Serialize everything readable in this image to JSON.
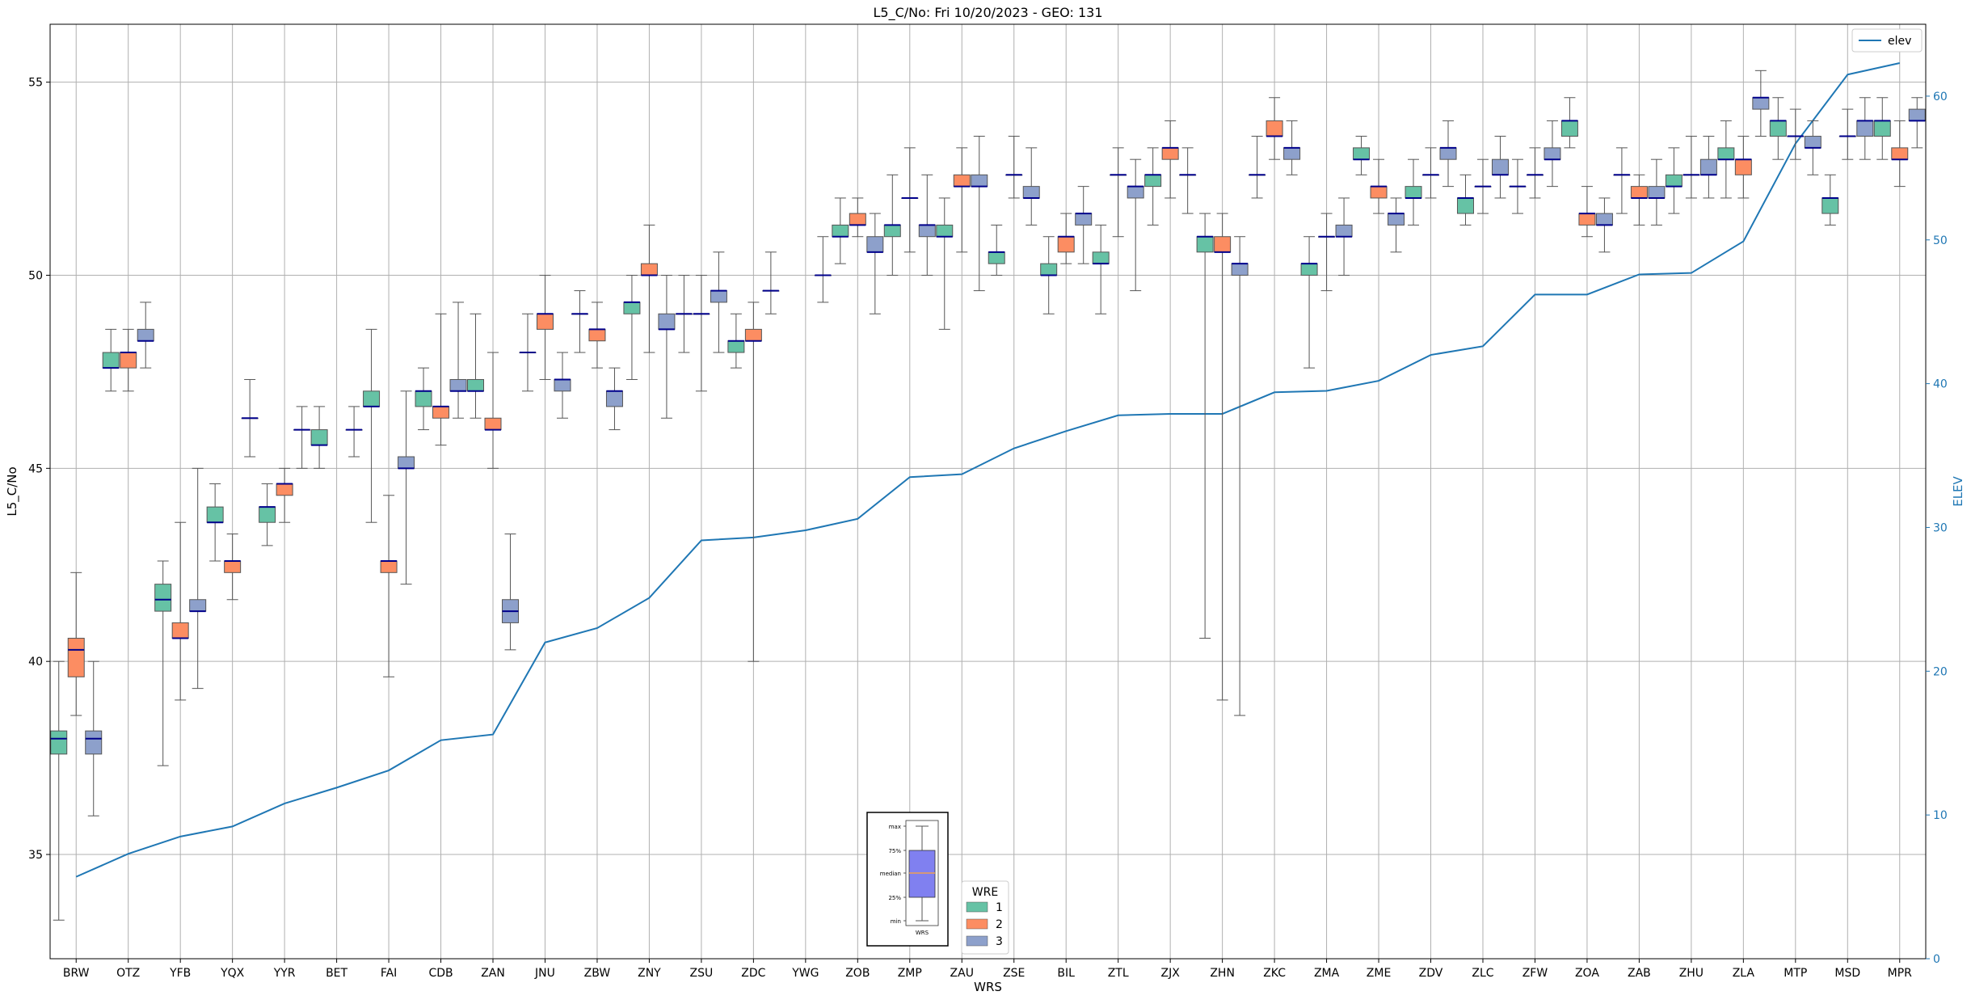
{
  "chart_data": {
    "type": "box",
    "title": "L5_C/No: Fri 10/20/2023 - GEO: 131",
    "xlabel": "WRS",
    "ylabel": "L5_C/No",
    "y2label": "ELEV",
    "ylim": [
      32.3,
      56.5
    ],
    "y2lim": [
      0,
      65
    ],
    "yticks": [
      35,
      40,
      45,
      50,
      55
    ],
    "y2ticks": [
      0,
      10,
      20,
      30,
      40,
      50,
      60
    ],
    "grid": true,
    "categories": [
      "BRW",
      "OTZ",
      "YFB",
      "YQX",
      "YYR",
      "BET",
      "FAI",
      "CDB",
      "ZAN",
      "JNU",
      "ZBW",
      "ZNY",
      "ZSU",
      "ZDC",
      "YWG",
      "ZOB",
      "ZMP",
      "ZAU",
      "ZSE",
      "BIL",
      "ZTL",
      "ZJX",
      "ZHN",
      "ZKC",
      "ZMA",
      "ZME",
      "ZDV",
      "ZLC",
      "ZFW",
      "ZOA",
      "ZAB",
      "ZHU",
      "ZLA",
      "MTP",
      "MSD",
      "MPR"
    ],
    "hue": {
      "title": "WRE",
      "levels": [
        "1",
        "2",
        "3"
      ],
      "colors": [
        "#66c2a5",
        "#fc8d62",
        "#8da0cb"
      ]
    },
    "median_color": "#00008b",
    "boxes": [
      [
        "BRW",
        1,
        33.3,
        37.6,
        38.0,
        38.2,
        40.0
      ],
      [
        "BRW",
        2,
        38.6,
        39.6,
        40.3,
        40.6,
        42.3
      ],
      [
        "BRW",
        3,
        36.0,
        37.6,
        38.0,
        38.2,
        40.0
      ],
      [
        "OTZ",
        1,
        47.0,
        47.6,
        47.6,
        48.0,
        48.6
      ],
      [
        "OTZ",
        2,
        47.0,
        47.6,
        48.0,
        48.0,
        48.6
      ],
      [
        "OTZ",
        3,
        47.6,
        48.3,
        48.3,
        48.6,
        49.3
      ],
      [
        "YFB",
        1,
        37.3,
        41.3,
        41.6,
        42.0,
        42.6
      ],
      [
        "YFB",
        2,
        39.0,
        40.6,
        40.6,
        41.0,
        43.6
      ],
      [
        "YFB",
        3,
        39.3,
        41.3,
        41.3,
        41.6,
        45.0
      ],
      [
        "YQX",
        1,
        42.6,
        43.6,
        43.6,
        44.0,
        44.6
      ],
      [
        "YQX",
        2,
        41.6,
        42.3,
        42.6,
        42.6,
        43.3
      ],
      [
        "YQX",
        3,
        45.3,
        46.3,
        46.3,
        46.3,
        47.3
      ],
      [
        "YYR",
        1,
        43.0,
        43.6,
        44.0,
        44.0,
        44.6
      ],
      [
        "YYR",
        2,
        43.6,
        44.3,
        44.6,
        44.6,
        45.0
      ],
      [
        "YYR",
        3,
        45.0,
        46.0,
        46.0,
        46.0,
        46.6
      ],
      [
        "BET",
        1,
        45.0,
        45.6,
        45.6,
        46.0,
        46.6
      ],
      [
        "BET",
        3,
        45.3,
        46.0,
        46.0,
        46.0,
        46.6
      ],
      [
        "FAI",
        1,
        43.6,
        46.6,
        46.6,
        47.0,
        48.6
      ],
      [
        "FAI",
        2,
        39.6,
        42.3,
        42.6,
        42.6,
        44.3
      ],
      [
        "FAI",
        3,
        42.0,
        45.0,
        45.0,
        45.3,
        47.0
      ],
      [
        "CDB",
        1,
        46.0,
        46.6,
        47.0,
        47.0,
        47.6
      ],
      [
        "CDB",
        2,
        45.6,
        46.3,
        46.6,
        46.6,
        49.0
      ],
      [
        "CDB",
        3,
        46.3,
        47.0,
        47.0,
        47.3,
        49.3
      ],
      [
        "ZAN",
        1,
        46.3,
        47.0,
        47.0,
        47.3,
        49.0
      ],
      [
        "ZAN",
        2,
        45.0,
        46.0,
        46.0,
        46.3,
        48.0
      ],
      [
        "ZAN",
        3,
        40.3,
        41.0,
        41.3,
        41.6,
        43.3
      ],
      [
        "JNU",
        1,
        47.0,
        48.0,
        48.0,
        48.0,
        49.0
      ],
      [
        "JNU",
        2,
        47.3,
        48.6,
        49.0,
        49.0,
        50.0
      ],
      [
        "JNU",
        3,
        46.3,
        47.0,
        47.3,
        47.3,
        48.0
      ],
      [
        "ZBW",
        1,
        48.0,
        49.0,
        49.0,
        49.0,
        49.6
      ],
      [
        "ZBW",
        2,
        47.6,
        48.3,
        48.6,
        48.6,
        49.3
      ],
      [
        "ZBW",
        3,
        46.0,
        46.6,
        47.0,
        47.0,
        47.6
      ],
      [
        "ZNY",
        1,
        47.3,
        49.0,
        49.3,
        49.3,
        50.0
      ],
      [
        "ZNY",
        2,
        48.0,
        50.0,
        50.0,
        50.3,
        51.3
      ],
      [
        "ZNY",
        3,
        46.3,
        48.6,
        48.6,
        49.0,
        50.0
      ],
      [
        "ZSU",
        1,
        48.0,
        49.0,
        49.0,
        49.0,
        50.0
      ],
      [
        "ZSU",
        2,
        47.0,
        49.0,
        49.0,
        49.0,
        50.0
      ],
      [
        "ZSU",
        3,
        48.0,
        49.3,
        49.6,
        49.6,
        50.6
      ],
      [
        "ZDC",
        1,
        47.6,
        48.0,
        48.3,
        48.3,
        49.0
      ],
      [
        "ZDC",
        2,
        40.0,
        48.3,
        48.3,
        48.6,
        49.3
      ],
      [
        "ZDC",
        3,
        49.0,
        49.6,
        49.6,
        49.6,
        50.6
      ],
      [
        "YWG",
        3,
        49.3,
        50.0,
        50.0,
        50.0,
        51.0
      ],
      [
        "ZOB",
        1,
        50.3,
        51.0,
        51.0,
        51.3,
        52.0
      ],
      [
        "ZOB",
        2,
        51.0,
        51.3,
        51.3,
        51.6,
        52.0
      ],
      [
        "ZOB",
        3,
        49.0,
        50.6,
        50.6,
        51.0,
        51.6
      ],
      [
        "ZMP",
        1,
        50.0,
        51.0,
        51.3,
        51.3,
        52.6
      ],
      [
        "ZMP",
        2,
        50.6,
        52.0,
        52.0,
        52.0,
        53.3
      ],
      [
        "ZMP",
        3,
        50.0,
        51.0,
        51.3,
        51.3,
        52.6
      ],
      [
        "ZAU",
        1,
        48.6,
        51.0,
        51.0,
        51.3,
        52.0
      ],
      [
        "ZAU",
        2,
        50.6,
        52.3,
        52.3,
        52.6,
        53.3
      ],
      [
        "ZAU",
        3,
        49.6,
        52.3,
        52.3,
        52.6,
        53.6
      ],
      [
        "ZSE",
        1,
        50.0,
        50.3,
        50.6,
        50.6,
        51.3
      ],
      [
        "ZSE",
        2,
        52.0,
        52.6,
        52.6,
        52.6,
        53.6
      ],
      [
        "ZSE",
        3,
        51.3,
        52.0,
        52.0,
        52.3,
        53.3
      ],
      [
        "BIL",
        1,
        49.0,
        50.0,
        50.0,
        50.3,
        51.0
      ],
      [
        "BIL",
        2,
        50.3,
        50.6,
        51.0,
        51.0,
        51.6
      ],
      [
        "BIL",
        3,
        50.3,
        51.3,
        51.6,
        51.6,
        52.3
      ],
      [
        "ZTL",
        1,
        49.0,
        50.3,
        50.3,
        50.6,
        51.3
      ],
      [
        "ZTL",
        2,
        51.0,
        52.6,
        52.6,
        52.6,
        53.3
      ],
      [
        "ZTL",
        3,
        49.6,
        52.0,
        52.3,
        52.3,
        53.0
      ],
      [
        "ZJX",
        1,
        51.3,
        52.3,
        52.6,
        52.6,
        53.3
      ],
      [
        "ZJX",
        2,
        52.0,
        53.0,
        53.3,
        53.3,
        54.0
      ],
      [
        "ZJX",
        3,
        51.6,
        52.6,
        52.6,
        52.6,
        53.3
      ],
      [
        "ZHN",
        1,
        40.6,
        50.6,
        51.0,
        51.0,
        51.6
      ],
      [
        "ZHN",
        2,
        39.0,
        50.6,
        50.6,
        51.0,
        51.6
      ],
      [
        "ZHN",
        3,
        38.6,
        50.0,
        50.3,
        50.3,
        51.0
      ],
      [
        "ZKC",
        1,
        52.0,
        52.6,
        52.6,
        52.6,
        53.6
      ],
      [
        "ZKC",
        2,
        53.0,
        53.6,
        53.6,
        54.0,
        54.6
      ],
      [
        "ZKC",
        3,
        52.6,
        53.0,
        53.3,
        53.3,
        54.0
      ],
      [
        "ZMA",
        1,
        47.6,
        50.0,
        50.3,
        50.3,
        51.0
      ],
      [
        "ZMA",
        2,
        49.6,
        51.0,
        51.0,
        51.0,
        51.6
      ],
      [
        "ZMA",
        3,
        50.0,
        51.0,
        51.0,
        51.3,
        52.0
      ],
      [
        "ZME",
        1,
        52.6,
        53.0,
        53.0,
        53.3,
        53.6
      ],
      [
        "ZME",
        2,
        51.6,
        52.0,
        52.3,
        52.3,
        53.0
      ],
      [
        "ZME",
        3,
        50.6,
        51.3,
        51.6,
        51.6,
        52.0
      ],
      [
        "ZDV",
        1,
        51.3,
        52.0,
        52.0,
        52.3,
        53.0
      ],
      [
        "ZDV",
        2,
        52.0,
        52.6,
        52.6,
        52.6,
        53.3
      ],
      [
        "ZDV",
        3,
        52.3,
        53.0,
        53.3,
        53.3,
        54.0
      ],
      [
        "ZLC",
        1,
        51.3,
        51.6,
        52.0,
        52.0,
        52.6
      ],
      [
        "ZLC",
        2,
        51.6,
        52.3,
        52.3,
        52.3,
        53.0
      ],
      [
        "ZLC",
        3,
        52.0,
        52.6,
        52.6,
        53.0,
        53.6
      ],
      [
        "ZFW",
        1,
        51.6,
        52.3,
        52.3,
        52.3,
        53.0
      ],
      [
        "ZFW",
        2,
        52.0,
        52.6,
        52.6,
        52.6,
        53.3
      ],
      [
        "ZFW",
        3,
        52.3,
        53.0,
        53.0,
        53.3,
        54.0
      ],
      [
        "ZOA",
        1,
        53.3,
        53.6,
        54.0,
        54.0,
        54.6
      ],
      [
        "ZOA",
        2,
        51.0,
        51.3,
        51.6,
        51.6,
        52.3
      ],
      [
        "ZOA",
        3,
        50.6,
        51.3,
        51.3,
        51.6,
        52.0
      ],
      [
        "ZAB",
        1,
        51.6,
        52.6,
        52.6,
        52.6,
        53.3
      ],
      [
        "ZAB",
        2,
        51.3,
        52.0,
        52.0,
        52.3,
        52.6
      ],
      [
        "ZAB",
        3,
        51.3,
        52.0,
        52.0,
        52.3,
        53.0
      ],
      [
        "ZHU",
        1,
        51.6,
        52.3,
        52.3,
        52.6,
        53.3
      ],
      [
        "ZHU",
        2,
        52.0,
        52.6,
        52.6,
        52.6,
        53.6
      ],
      [
        "ZHU",
        3,
        52.0,
        52.6,
        52.6,
        53.0,
        53.6
      ],
      [
        "ZLA",
        1,
        52.0,
        53.0,
        53.0,
        53.3,
        54.0
      ],
      [
        "ZLA",
        2,
        52.0,
        52.6,
        53.0,
        53.0,
        53.6
      ],
      [
        "ZLA",
        3,
        53.6,
        54.3,
        54.6,
        54.6,
        55.3
      ],
      [
        "MTP",
        1,
        53.0,
        53.6,
        54.0,
        54.0,
        54.6
      ],
      [
        "MTP",
        2,
        53.0,
        53.6,
        53.6,
        53.6,
        54.3
      ],
      [
        "MTP",
        3,
        52.6,
        53.3,
        53.3,
        53.6,
        54.0
      ],
      [
        "MSD",
        1,
        51.3,
        51.6,
        52.0,
        52.0,
        52.6
      ],
      [
        "MSD",
        2,
        53.0,
        53.6,
        53.6,
        53.6,
        54.3
      ],
      [
        "MSD",
        3,
        53.0,
        53.6,
        54.0,
        54.0,
        54.6
      ],
      [
        "MPR",
        1,
        53.0,
        53.6,
        54.0,
        54.0,
        54.6
      ],
      [
        "MPR",
        2,
        52.3,
        53.0,
        53.0,
        53.3,
        54.0
      ],
      [
        "MPR",
        3,
        53.3,
        54.0,
        54.0,
        54.3,
        54.6
      ]
    ],
    "elev_series": {
      "name": "elev",
      "color": "#1f77b4",
      "values": [
        5.7,
        7.3,
        8.5,
        9.2,
        10.8,
        11.9,
        13.1,
        15.2,
        15.6,
        22.0,
        23.0,
        25.1,
        29.1,
        29.3,
        29.8,
        30.6,
        33.5,
        33.7,
        35.5,
        36.7,
        37.8,
        37.9,
        37.9,
        39.4,
        39.5,
        40.2,
        42.0,
        42.6,
        46.2,
        46.2,
        47.6,
        47.7,
        49.9,
        56.7,
        61.5,
        62.3
      ]
    },
    "elev_legend": {
      "label": "elev",
      "loc": "upper right"
    },
    "wre_legend": {
      "title": "WRE",
      "labels": [
        "1",
        "2",
        "3"
      ],
      "loc": "lower center"
    },
    "inset_legend": {
      "labels": [
        "max",
        "75%",
        "median",
        "25%",
        "min"
      ],
      "xlabel": "WRS"
    }
  }
}
